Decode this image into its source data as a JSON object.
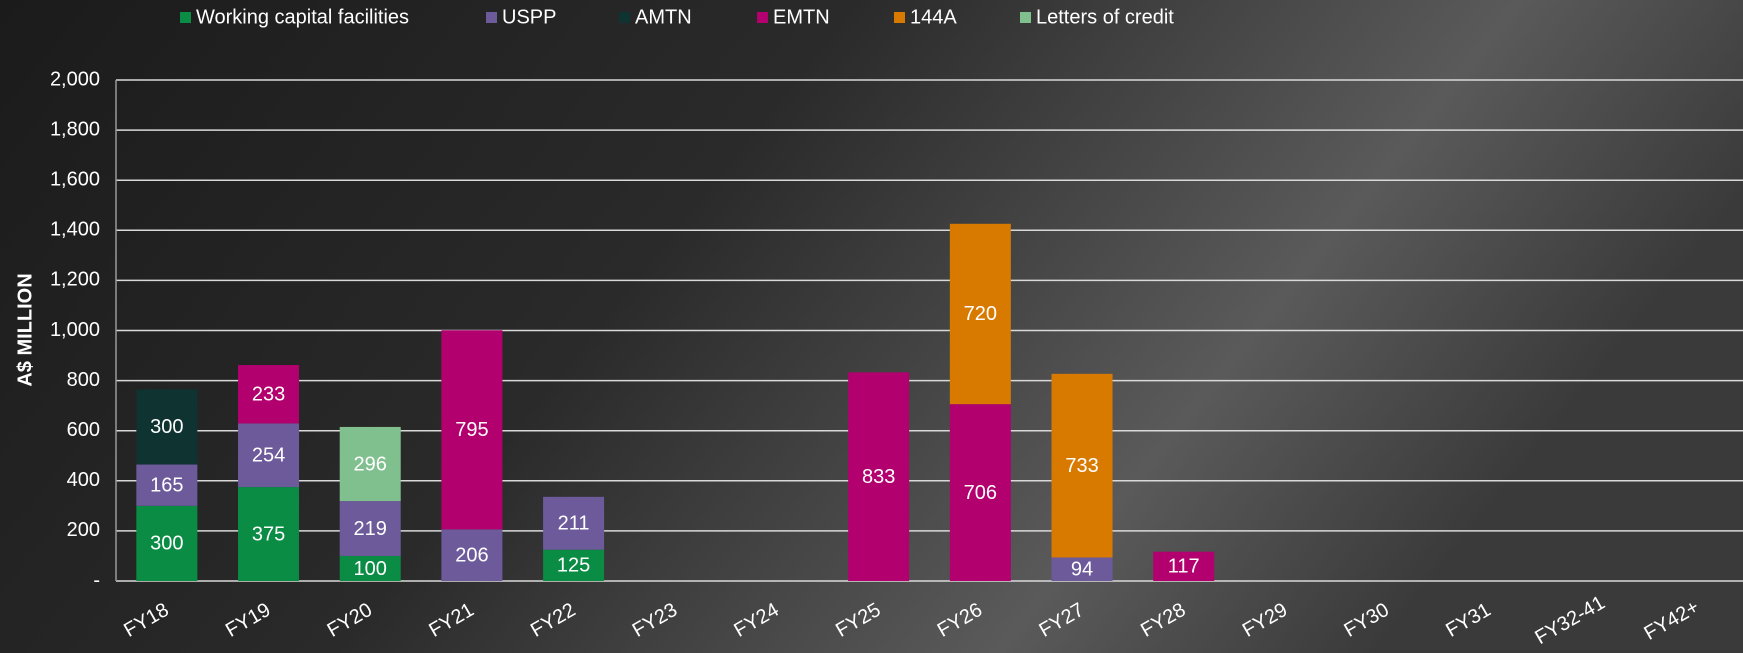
{
  "chart_data": {
    "type": "stacked_bar",
    "y_label": "A$ MILLION",
    "categories": [
      "FY18",
      "FY19",
      "FY20",
      "FY21",
      "FY22",
      "FY23",
      "FY24",
      "FY25",
      "FY26",
      "FY27",
      "FY28",
      "FY29",
      "FY30",
      "FY31",
      "FY32-41",
      "FY42+"
    ],
    "series": [
      {
        "name": "Working capital facilities",
        "color": "#0b8c45",
        "values": [
          300,
          375,
          100,
          null,
          125,
          null,
          null,
          null,
          null,
          null,
          null,
          null,
          null,
          null,
          null,
          null
        ]
      },
      {
        "name": "USPP",
        "color": "#6c5a9b",
        "values": [
          165,
          254,
          219,
          206,
          211,
          null,
          null,
          null,
          null,
          94,
          null,
          null,
          null,
          null,
          null,
          null
        ]
      },
      {
        "name": "AMTN",
        "color": "#0e3330",
        "values": [
          300,
          null,
          null,
          null,
          null,
          null,
          null,
          null,
          null,
          null,
          null,
          null,
          null,
          null,
          null,
          null
        ]
      },
      {
        "name": "EMTN",
        "color": "#b3006f",
        "values": [
          null,
          233,
          null,
          795,
          null,
          null,
          null,
          833,
          706,
          null,
          117,
          null,
          null,
          null,
          null,
          null
        ]
      },
      {
        "name": "144A",
        "color": "#d87a00",
        "values": [
          null,
          null,
          null,
          null,
          null,
          null,
          null,
          null,
          720,
          733,
          null,
          null,
          null,
          null,
          null,
          null
        ]
      },
      {
        "name": "Letters of credit",
        "color": "#80bf8e",
        "values": [
          null,
          null,
          296,
          null,
          null,
          null,
          null,
          null,
          null,
          null,
          null,
          null,
          null,
          null,
          null,
          null
        ]
      }
    ],
    "ylim": [
      0,
      2000
    ],
    "yticks": [
      {
        "value": 0,
        "label": "-"
      },
      200,
      400,
      600,
      800,
      {
        "value": 1000,
        "label": "1,000"
      },
      {
        "value": 1200,
        "label": "1,200"
      },
      {
        "value": 1400,
        "label": "1,400"
      },
      {
        "value": 1600,
        "label": "1,600"
      },
      {
        "value": 1800,
        "label": "1,800"
      },
      {
        "value": 2000,
        "label": "2,000"
      }
    ],
    "grid": true
  }
}
